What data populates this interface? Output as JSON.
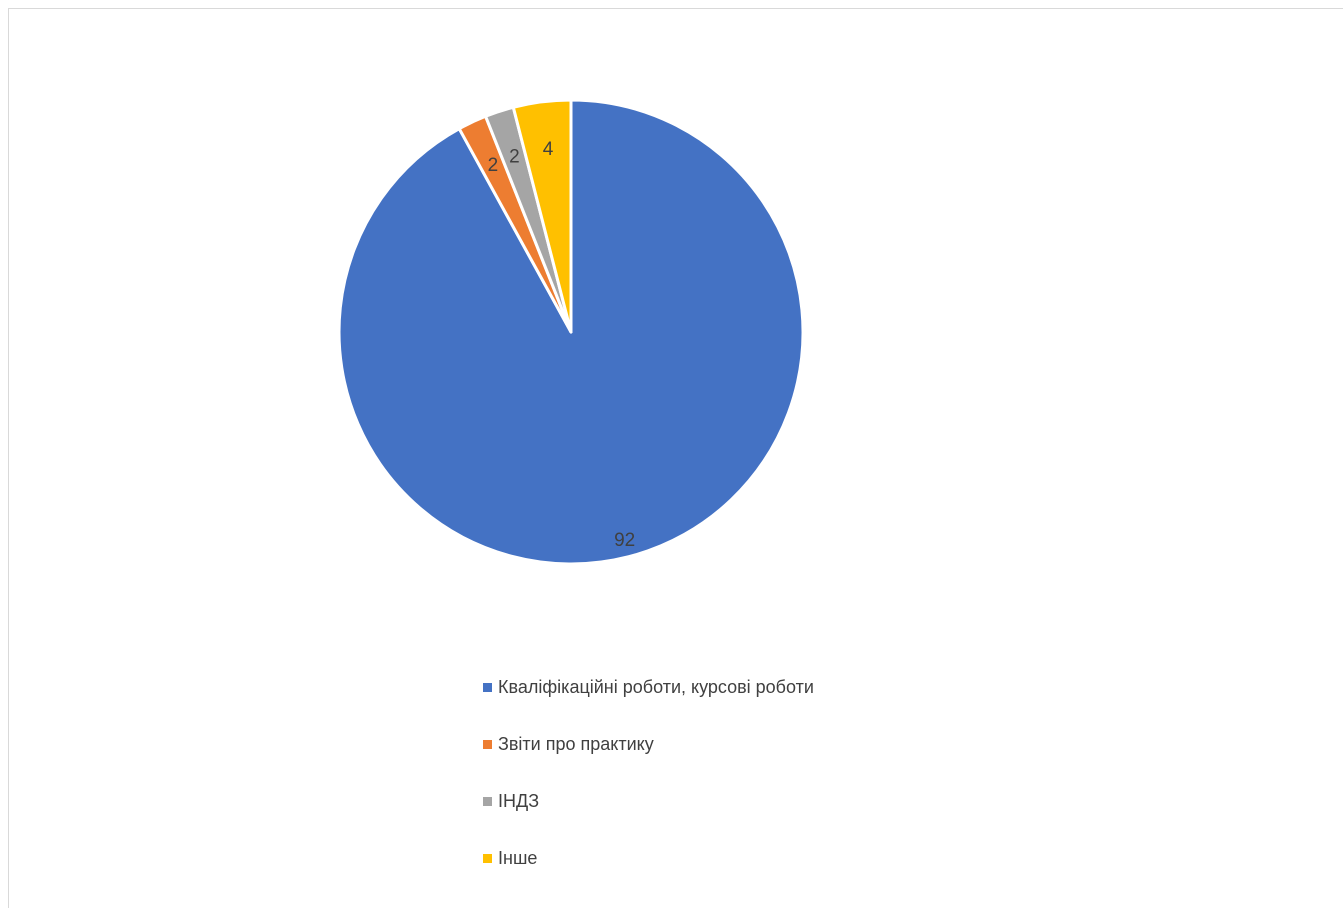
{
  "chart_data": {
    "type": "pie",
    "title": "",
    "categories": [
      "Кваліфікаційні роботи, курсові роботи",
      "Звіти про практику",
      "ІНДЗ",
      "Інше"
    ],
    "values": [
      92,
      2,
      2,
      4
    ],
    "colors": [
      "#4472c4",
      "#ed7d31",
      "#a5a5a5",
      "#ffc000"
    ],
    "data_labels": [
      "92",
      "2",
      "2",
      "4"
    ],
    "legend_position": "bottom",
    "start_angle": "12 o'clock",
    "direction": "clockwise"
  }
}
